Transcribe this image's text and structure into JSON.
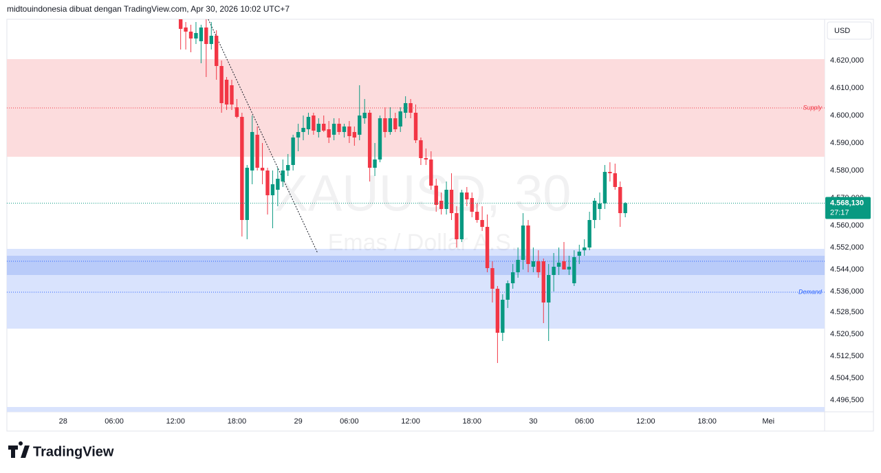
{
  "chart_data": {
    "type": "candlestick",
    "header": "midtouindonesia dibuat dengan TradingView.com, Apr 30, 2026 10:02 UTC+7",
    "currency": "USD",
    "watermark_symbol": "XAUUSD, 30",
    "watermark_name": "Emas / Dollar A.S.",
    "logo": "TradingView",
    "up_color": "#089981",
    "down_color": "#f23645",
    "grid": false,
    "xlim": [
      0,
      160
    ],
    "ylim": [
      4492.5,
      4635
    ],
    "xticks": [
      {
        "value": 11,
        "label": "28"
      },
      {
        "value": 21,
        "label": "06:00"
      },
      {
        "value": 33,
        "label": "12:00"
      },
      {
        "value": 45,
        "label": "18:00"
      },
      {
        "value": 57,
        "label": "29"
      },
      {
        "value": 67,
        "label": "06:00"
      },
      {
        "value": 79,
        "label": "12:00"
      },
      {
        "value": 91,
        "label": "18:00"
      },
      {
        "value": 103,
        "label": "30"
      },
      {
        "value": 113,
        "label": "06:00"
      },
      {
        "value": 125,
        "label": "12:00"
      },
      {
        "value": 137,
        "label": "18:00"
      },
      {
        "value": 149,
        "label": "Mei"
      }
    ],
    "yticks": [
      {
        "value": 4620,
        "label": "4.620,000"
      },
      {
        "value": 4610,
        "label": "4.610,000"
      },
      {
        "value": 4600,
        "label": "4.600,000"
      },
      {
        "value": 4590,
        "label": "4.590,000"
      },
      {
        "value": 4580,
        "label": "4.580,000"
      },
      {
        "value": 4570,
        "label": "4.570,000"
      },
      {
        "value": 4560,
        "label": "4.560,000"
      },
      {
        "value": 4552,
        "label": "4.552,000"
      },
      {
        "value": 4544,
        "label": "4.544,000"
      },
      {
        "value": 4536,
        "label": "4.536,000"
      },
      {
        "value": 4528.5,
        "label": "4.528,500"
      },
      {
        "value": 4520.5,
        "label": "4.520,500"
      },
      {
        "value": 4512.5,
        "label": "4.512,500"
      },
      {
        "value": 4504.5,
        "label": "4.504,500"
      },
      {
        "value": 4496.5,
        "label": "4.496,500"
      }
    ],
    "current_price": {
      "value": 4568.13,
      "label": "4.568,130",
      "color": "#089981"
    },
    "countdown": "27:17",
    "zones": [
      {
        "name": "Supply",
        "top": 4620.5,
        "bottom": 4585,
        "level": 4602.75,
        "color": "#fcdcdd",
        "label_color": "#f23645"
      },
      {
        "name": "Demand",
        "top": 4551.5,
        "bottom": 4522.5,
        "level": 4535.75,
        "color": "#d9e3fd",
        "label_color": "#2962ff",
        "core": [
          4549,
          4542
        ],
        "core_color": "#b9cbf9",
        "core_level": 4547
      }
    ],
    "trendline": {
      "x": [
        39.4,
        60.8
      ],
      "y": [
        4635,
        4550
      ]
    },
    "x": [
      34,
      35,
      36,
      37,
      38,
      39,
      40,
      41,
      42,
      43,
      44,
      45,
      46,
      47,
      48,
      49,
      50,
      51,
      52,
      53,
      54,
      55,
      56,
      57,
      58,
      59,
      60,
      61,
      62,
      63,
      64,
      65,
      66,
      67,
      68,
      69,
      70,
      71,
      72,
      73,
      74,
      75,
      76,
      77,
      78,
      79,
      80,
      81,
      82,
      83,
      84,
      85,
      86,
      87,
      88,
      89,
      90,
      91,
      92,
      93,
      94,
      95,
      96,
      97,
      98,
      99,
      100,
      101,
      102,
      103,
      104,
      105,
      106,
      107,
      108,
      109,
      110,
      111,
      112,
      113,
      114,
      115,
      116,
      117,
      118,
      119,
      120,
      121
    ],
    "open": [
      4635,
      4632,
      4630.5,
      4628,
      4627,
      4632,
      4626,
      4629,
      4618,
      4613,
      4611,
      4603,
      4599.5,
      4562,
      4580,
      4593,
      4581,
      4580,
      4571,
      4573,
      4576,
      4580,
      4582,
      4592,
      4594,
      4595,
      4600,
      4594,
      4597,
      4595,
      4593,
      4597,
      4594,
      4596,
      4594,
      4593,
      4599,
      4601,
      4581,
      4584,
      4599,
      4594,
      4599,
      4596,
      4601,
      4604.5,
      4601,
      4591,
      4584.5,
      4584,
      4574.5,
      4569,
      4566,
      4573,
      4564.5,
      4555,
      4572,
      4570,
      4565,
      4562,
      4559.5,
      4544.5,
      4537,
      4521,
      4533,
      4539,
      4543,
      4547.5,
      4560,
      4545,
      4547,
      4547,
      4532,
      4542,
      4545,
      4547,
      4544,
      4539,
      4549,
      4551,
      4552,
      4562,
      4566,
      4568,
      4579.5,
      4579,
      4574,
      4564.5
    ],
    "high": [
      4636,
      4634,
      4633,
      4634,
      4633,
      4635,
      4634,
      4631,
      4620,
      4614,
      4613,
      4606,
      4601,
      4582,
      4600,
      4596,
      4590,
      4581,
      4580,
      4581,
      4584,
      4586,
      4593,
      4597,
      4600,
      4601,
      4601,
      4599,
      4600,
      4598,
      4599,
      4599,
      4597,
      4598,
      4596,
      4611,
      4606,
      4602,
      4590,
      4600,
      4603,
      4603,
      4601,
      4603,
      4607,
      4606,
      4604,
      4592,
      4588,
      4587,
      4577,
      4572,
      4576,
      4579,
      4567,
      4573,
      4574,
      4572,
      4568,
      4567,
      4564,
      4547,
      4538,
      4535,
      4540,
      4546,
      4552,
      4564.5,
      4562,
      4552,
      4551,
      4548,
      4546,
      4550,
      4552,
      4554,
      4549,
      4551,
      4553,
      4555,
      4565,
      4570,
      4572,
      4582,
      4583,
      4582.5,
      4576,
      4568.5
    ],
    "low": [
      4624,
      4624,
      4623,
      4626,
      4619,
      4614,
      4624,
      4613,
      4601,
      4602,
      4602,
      4599,
      4556,
      4555,
      4575,
      4580,
      4575,
      4564,
      4559,
      4567,
      4574,
      4578,
      4580,
      4587,
      4591,
      4593,
      4593,
      4592,
      4594,
      4590,
      4591,
      4593,
      4592,
      4590,
      4589,
      4591,
      4597,
      4576,
      4578,
      4583,
      4592,
      4593,
      4594,
      4594,
      4599,
      4599,
      4590,
      4582,
      4582,
      4573,
      4565,
      4564,
      4564,
      4562,
      4552,
      4554,
      4567,
      4563,
      4561,
      4558,
      4543,
      4532,
      4510,
      4518,
      4530,
      4537,
      4541,
      4544,
      4543,
      4543,
      4541,
      4524.5,
      4518,
      4536,
      4542,
      4544,
      4542,
      4538,
      4546,
      4549,
      4551,
      4559,
      4562,
      4566,
      4576,
      4573,
      4559.5,
      4563
    ],
    "close": [
      4631.5,
      4630.5,
      4628,
      4630,
      4632,
      4626,
      4629,
      4618,
      4604.5,
      4604,
      4604,
      4599.5,
      4562,
      4581,
      4594,
      4581,
      4580,
      4571,
      4575,
      4577,
      4580,
      4582,
      4592,
      4594,
      4595.5,
      4599.5,
      4594.5,
      4597,
      4594.5,
      4592,
      4597,
      4594,
      4596,
      4592.5,
      4592,
      4600,
      4601,
      4581,
      4584,
      4599,
      4594,
      4599,
      4595,
      4601.5,
      4604.5,
      4601,
      4591,
      4584.5,
      4584,
      4574.5,
      4567.5,
      4566,
      4573,
      4564.5,
      4555,
      4572,
      4569.5,
      4565,
      4562,
      4559.5,
      4544.5,
      4537,
      4521,
      4533,
      4539,
      4543,
      4547.5,
      4560,
      4546,
      4547,
      4543,
      4532,
      4542,
      4545,
      4546.5,
      4544,
      4545,
      4548.5,
      4550.5,
      4552,
      4562,
      4569,
      4568,
      4579.5,
      4579,
      4574,
      4564.5,
      4568.13
    ]
  }
}
